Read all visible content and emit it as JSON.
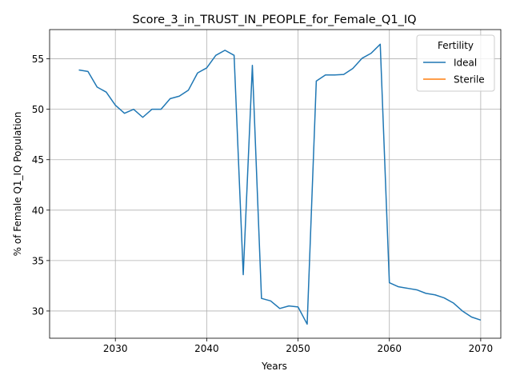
{
  "chart_data": {
    "type": "line",
    "title": "Score_3_in_TRUST_IN_PEOPLE_for_Female_Q1_IQ",
    "xlabel": "Years",
    "ylabel": "% of Female Q1_IQ Population",
    "xlim": [
      2022.8,
      2072.2
    ],
    "ylim": [
      27.3,
      57.9
    ],
    "xticks": [
      2030,
      2040,
      2050,
      2060,
      2070
    ],
    "yticks": [
      30,
      35,
      40,
      45,
      50,
      55
    ],
    "grid": true,
    "legend": {
      "title": "Fertility",
      "position": "top-right"
    },
    "series": [
      {
        "name": "Ideal",
        "color": "#1f77b4",
        "x": [
          2026,
          2027,
          2028,
          2029,
          2030,
          2031,
          2032,
          2033,
          2034,
          2035,
          2036,
          2037,
          2038,
          2039,
          2040,
          2041,
          2042,
          2043,
          2044,
          2045,
          2046,
          2047,
          2048,
          2049,
          2050,
          2051,
          2052,
          2053,
          2054,
          2055,
          2056,
          2057,
          2058,
          2059,
          2060,
          2061,
          2062,
          2063,
          2064,
          2065,
          2066,
          2067,
          2068,
          2069,
          2070
        ],
        "values": [
          53.9,
          53.75,
          52.2,
          51.7,
          50.4,
          49.6,
          50.0,
          49.2,
          50.0,
          50.0,
          51.05,
          51.3,
          51.9,
          53.6,
          54.1,
          55.35,
          55.85,
          55.35,
          33.6,
          54.35,
          31.25,
          31.0,
          30.25,
          30.5,
          30.4,
          28.7,
          52.8,
          53.4,
          53.4,
          53.45,
          54.05,
          55.05,
          55.55,
          56.45,
          32.8,
          32.4,
          32.25,
          32.1,
          31.75,
          31.6,
          31.3,
          30.8,
          30.0,
          29.4,
          29.1
        ]
      },
      {
        "name": "Sterile",
        "color": "#ff7f0e",
        "x": [],
        "values": []
      }
    ]
  }
}
